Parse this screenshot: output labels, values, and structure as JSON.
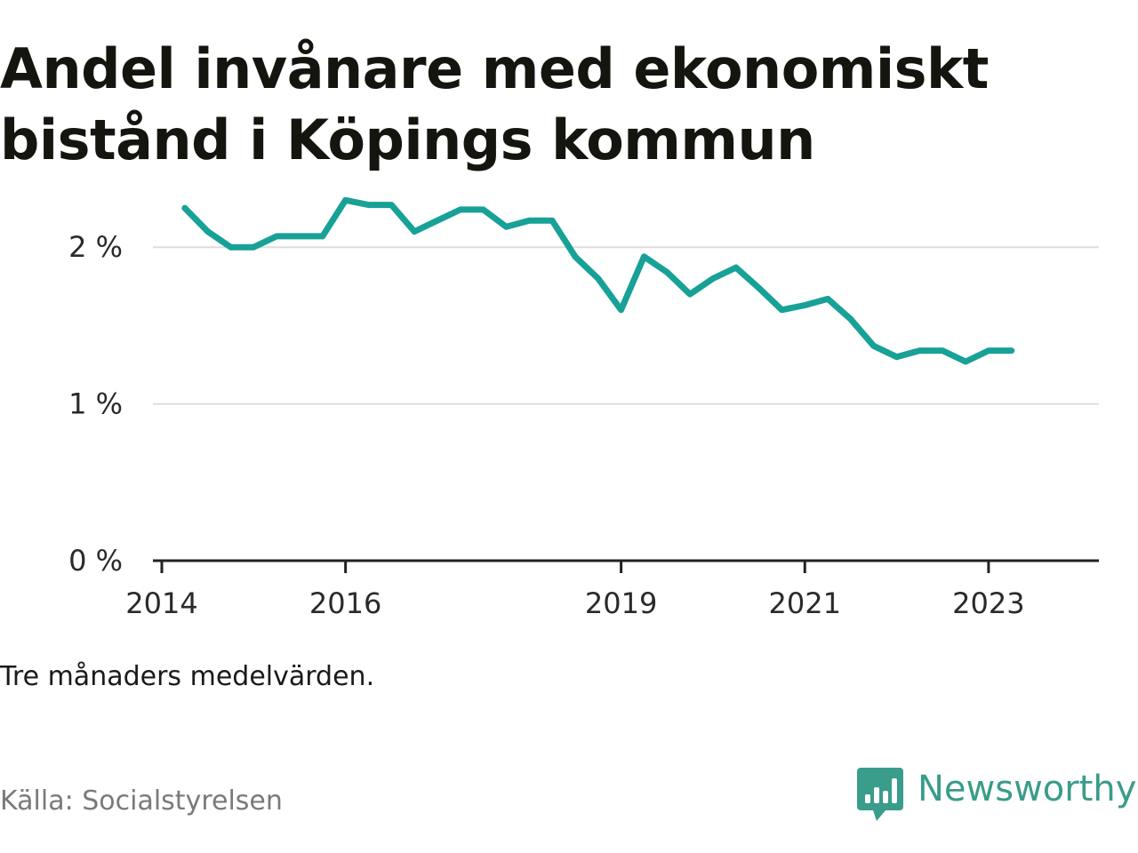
{
  "title": "Andel invånare med ekonomiskt bistånd i Köpings kommun",
  "note": "Tre månaders medelvärden.",
  "source": "Källa: Socialstyrelsen",
  "logo": {
    "text": "Newsworthy",
    "icon": "bar-chart-speech-bubble-icon"
  },
  "colors": {
    "line": "#17a197",
    "grid": "#dddddd",
    "axis": "#222222",
    "brand": "#3a9c8a"
  },
  "chart_data": {
    "type": "line",
    "title": "Andel invånare med ekonomiskt bistånd i Köpings kommun",
    "xlabel": "",
    "ylabel": "",
    "x_ticks": [
      "2014",
      "2016",
      "2019",
      "2021",
      "2023"
    ],
    "y_ticks": [
      "0 %",
      "1 %",
      "2 %"
    ],
    "ylim": [
      0,
      2.5
    ],
    "xlim": [
      "2014-01",
      "2023-11"
    ],
    "grid": true,
    "legend": "none",
    "series": [
      {
        "x": [
          "2014-04",
          "2014-07",
          "2014-10",
          "2015-01",
          "2015-04",
          "2015-07",
          "2015-10",
          "2016-01",
          "2016-04",
          "2016-07",
          "2016-10",
          "2017-01",
          "2017-04",
          "2017-07",
          "2017-10",
          "2018-01",
          "2018-04",
          "2018-07",
          "2018-10",
          "2019-01",
          "2019-04",
          "2019-07",
          "2019-10",
          "2020-01",
          "2020-04",
          "2020-07",
          "2020-10",
          "2021-01",
          "2021-04",
          "2021-07",
          "2021-10",
          "2022-01",
          "2022-04",
          "2022-07",
          "2022-10",
          "2023-01",
          "2023-04"
        ],
        "values": [
          2.25,
          2.1,
          2.0,
          2.0,
          2.07,
          2.07,
          2.07,
          2.3,
          2.27,
          2.27,
          2.1,
          2.17,
          2.24,
          2.24,
          2.13,
          2.17,
          2.17,
          1.94,
          1.8,
          1.6,
          1.94,
          1.84,
          1.7,
          1.8,
          1.87,
          1.74,
          1.6,
          1.63,
          1.67,
          1.54,
          1.37,
          1.3,
          1.34,
          1.34,
          1.27,
          1.34,
          1.34
        ]
      }
    ]
  }
}
